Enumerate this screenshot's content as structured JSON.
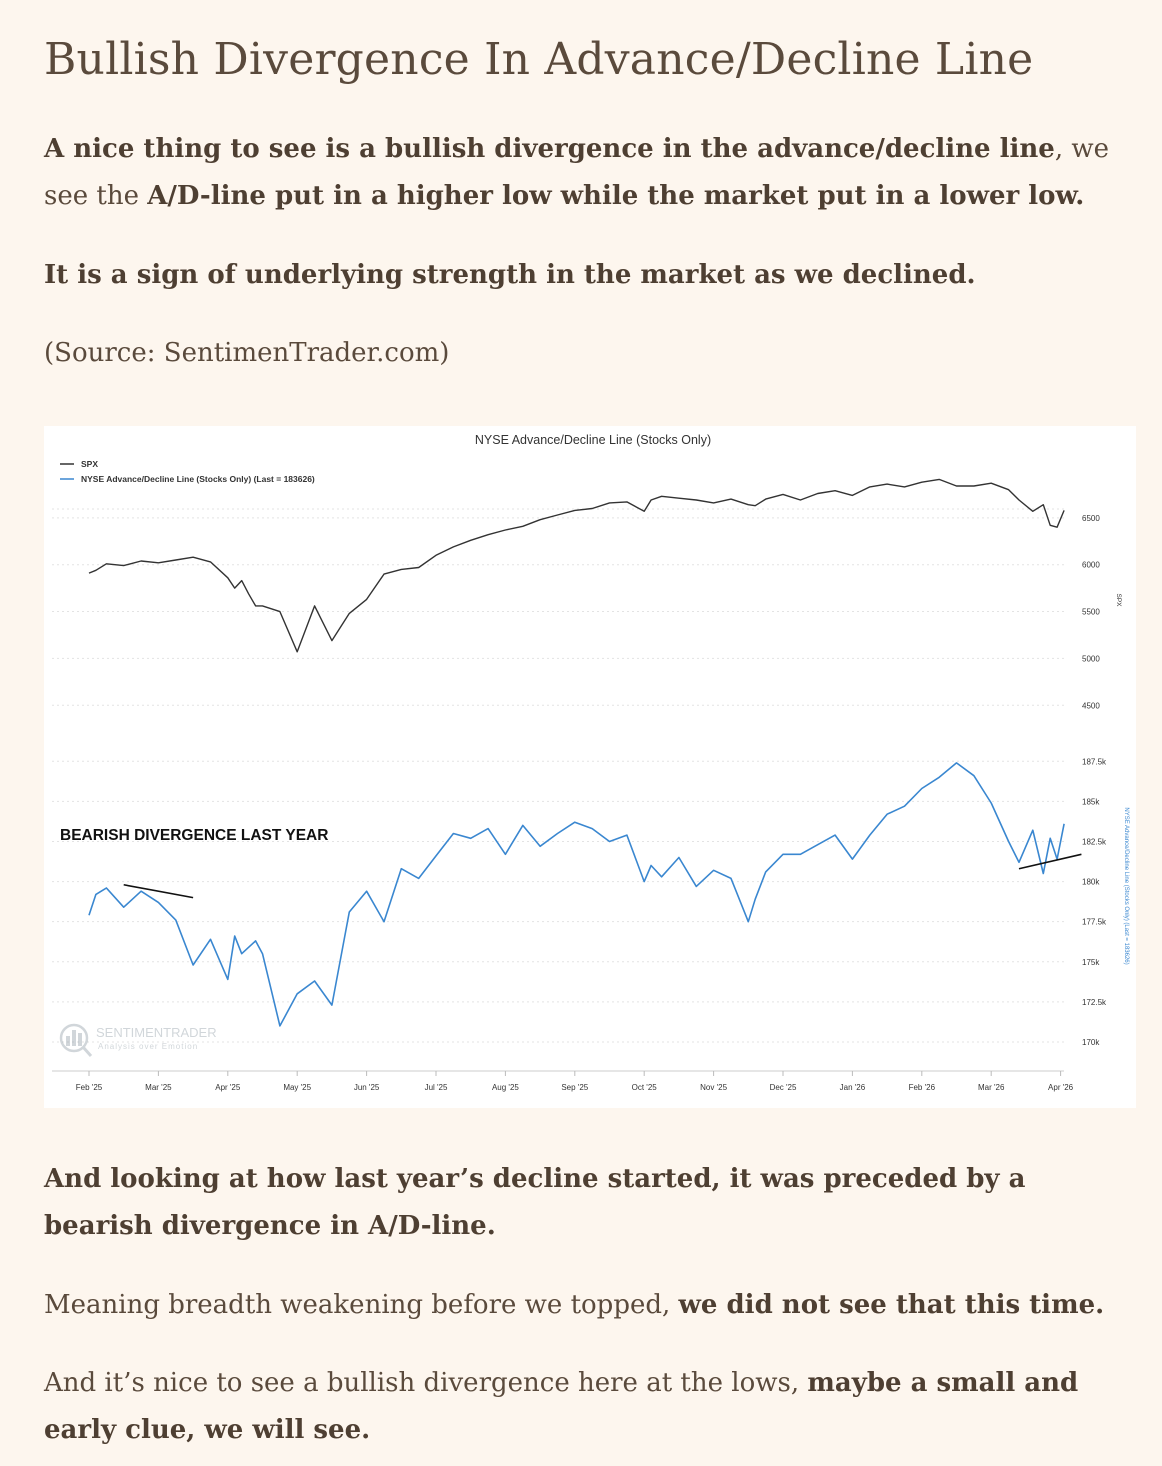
{
  "article": {
    "title": "Bullish Divergence In Advance/Decline Line",
    "p1": {
      "bold1": "A nice thing to see is a bullish divergence in the advance/decline line",
      "plain1": ", we see the ",
      "bold2": "A/D-line put in a higher low while the market put in a lower low."
    },
    "p2": {
      "bold1": "It is a sign of underlying strength in the market as we declined."
    },
    "p3": {
      "plain1": "(Source: SentimenTrader.com)"
    },
    "p4": {
      "bold1": "And looking at how last year’s decline started, it was preceded by a bearish divergence in A/D-line."
    },
    "p5": {
      "plain1": "Meaning breadth weakening before we topped, ",
      "bold1": "we did not see that this time."
    },
    "p6": {
      "plain1": "And it’s nice to see a bullish divergence here at the lows, ",
      "bold1": "maybe a small and early clue, we will see."
    }
  },
  "chart_data": {
    "type": "line",
    "title": "NYSE Advance/Decline Line (Stocks Only)",
    "annotation": "BEARISH DIVERGENCE LAST YEAR",
    "watermark": {
      "name": "SENTIMENTRADER",
      "tagline": "Analysis over Emotion"
    },
    "legend": [
      {
        "label": "SPX",
        "color": "#333333"
      },
      {
        "label": "NYSE Advance/Decline Line (Stocks Only) (Last = 183626)",
        "color": "#3a87d0"
      }
    ],
    "x_tick_labels": [
      "Feb '25",
      "Mar '25",
      "Apr '25",
      "May '25",
      "Jun '25",
      "Jul '25",
      "Aug '25",
      "Sep '25",
      "Oct '25",
      "Nov '25",
      "Dec '25",
      "Jan '26",
      "Feb '26",
      "Mar '26",
      "Apr '26"
    ],
    "spx_axis": {
      "label": "SPX",
      "ticks": [
        "6500",
        "6000",
        "5500",
        "5000",
        "4500"
      ],
      "tick_values": [
        6500,
        6000,
        5500,
        5000,
        4500
      ],
      "ylim": [
        4300,
        7000
      ]
    },
    "ad_axis": {
      "label": "NYSE Advance/Decline Line (Stocks Only) (Last = 183626)",
      "ticks": [
        "187.5k",
        "185k",
        "182.5k",
        "180k",
        "177.5k",
        "175k",
        "172.5k",
        "170k"
      ],
      "tick_values": [
        187500,
        185000,
        182500,
        180000,
        177500,
        175000,
        172500,
        170000
      ],
      "ylim": [
        168500,
        189700
      ]
    },
    "series": [
      {
        "name": "SPX",
        "color": "#333333",
        "x": [
          0,
          0.1,
          0.25,
          0.5,
          0.75,
          1,
          1.25,
          1.5,
          1.75,
          2,
          2.1,
          2.2,
          2.3,
          2.4,
          2.5,
          2.75,
          3,
          3.25,
          3.5,
          3.75,
          4,
          4.25,
          4.5,
          4.75,
          5,
          5.25,
          5.5,
          5.75,
          6,
          6.25,
          6.5,
          6.75,
          7,
          7.25,
          7.5,
          7.75,
          8,
          8.1,
          8.25,
          8.5,
          8.75,
          9,
          9.25,
          9.5,
          9.6,
          9.75,
          10,
          10.25,
          10.5,
          10.75,
          11,
          11.25,
          11.5,
          11.75,
          12,
          12.25,
          12.5,
          12.75,
          13,
          13.25,
          13.4,
          13.6,
          13.75,
          13.85,
          13.95,
          14.05
        ],
        "values": [
          5910,
          5940,
          6010,
          5990,
          6040,
          6020,
          6050,
          6080,
          6030,
          5860,
          5750,
          5830,
          5690,
          5560,
          5560,
          5500,
          5070,
          5560,
          5190,
          5480,
          5630,
          5900,
          5950,
          5970,
          6100,
          6190,
          6260,
          6320,
          6370,
          6410,
          6480,
          6530,
          6580,
          6600,
          6660,
          6670,
          6570,
          6690,
          6730,
          6710,
          6690,
          6660,
          6700,
          6640,
          6630,
          6700,
          6750,
          6690,
          6760,
          6790,
          6740,
          6830,
          6860,
          6830,
          6880,
          6910,
          6840,
          6840,
          6870,
          6800,
          6690,
          6570,
          6640,
          6420,
          6400,
          6580
        ]
      },
      {
        "name": "NYSE Advance/Decline Line (Stocks Only)",
        "color": "#3a87d0",
        "x": [
          0,
          0.1,
          0.25,
          0.5,
          0.75,
          1,
          1.25,
          1.5,
          1.75,
          2,
          2.1,
          2.2,
          2.3,
          2.4,
          2.5,
          2.75,
          3,
          3.25,
          3.5,
          3.75,
          4,
          4.25,
          4.5,
          4.75,
          5,
          5.25,
          5.5,
          5.75,
          6,
          6.25,
          6.5,
          6.75,
          7,
          7.25,
          7.5,
          7.75,
          8,
          8.1,
          8.25,
          8.5,
          8.75,
          9,
          9.25,
          9.5,
          9.6,
          9.75,
          10,
          10.25,
          10.5,
          10.75,
          11,
          11.25,
          11.5,
          11.75,
          12,
          12.25,
          12.5,
          12.75,
          13,
          13.25,
          13.4,
          13.6,
          13.75,
          13.85,
          13.95,
          14.05
        ],
        "values": [
          177900,
          179200,
          179600,
          178400,
          179400,
          178700,
          177600,
          174800,
          176400,
          173900,
          176600,
          175500,
          175900,
          176300,
          175500,
          171000,
          173000,
          173800,
          172300,
          178100,
          179400,
          177500,
          180800,
          180200,
          181600,
          183000,
          182700,
          183300,
          181700,
          183500,
          182200,
          183000,
          183700,
          183300,
          182500,
          182900,
          180000,
          181000,
          180300,
          181500,
          179700,
          180700,
          180200,
          177500,
          178900,
          180600,
          181700,
          181700,
          182300,
          182900,
          181400,
          182900,
          184200,
          184700,
          185800,
          186500,
          187400,
          186600,
          184900,
          182500,
          181200,
          183200,
          180500,
          182700,
          181400,
          183600
        ]
      }
    ],
    "trendlines": [
      {
        "name": "bearish-divergence-line",
        "color": "#111111",
        "points": [
          [
            0.5,
            179800
          ],
          [
            1.5,
            179000
          ]
        ]
      },
      {
        "name": "bullish-divergence-line",
        "color": "#111111",
        "points": [
          [
            13.4,
            180800
          ],
          [
            14.3,
            181700
          ]
        ]
      }
    ],
    "grid": true
  }
}
